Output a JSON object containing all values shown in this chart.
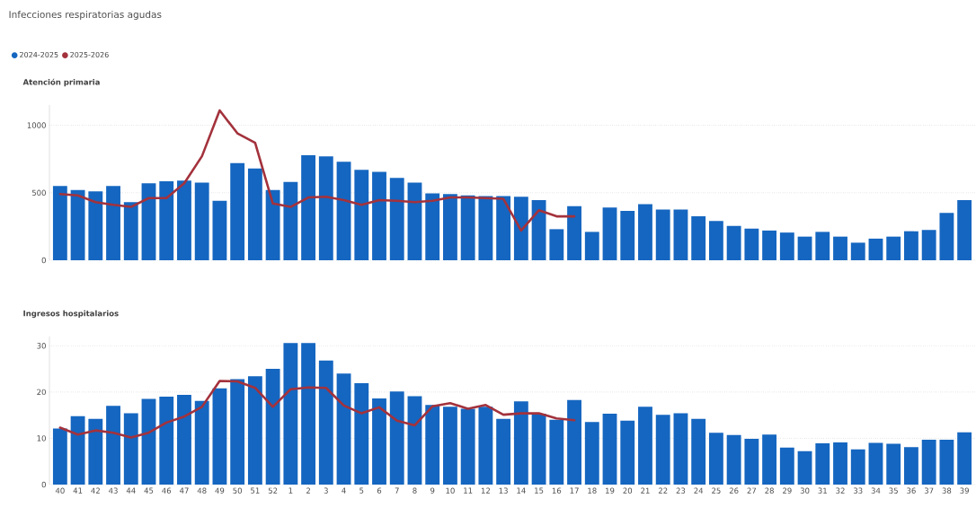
{
  "chart_data": [
    {
      "type": "bar",
      "title": "Infecciones respiratorias agudas",
      "subtitle": "Atención primaria",
      "categories": [
        "40",
        "41",
        "42",
        "43",
        "44",
        "45",
        "46",
        "47",
        "48",
        "49",
        "50",
        "51",
        "52",
        "1",
        "2",
        "3",
        "4",
        "5",
        "6",
        "7",
        "8",
        "9",
        "10",
        "11",
        "12",
        "13",
        "14",
        "15",
        "16",
        "17",
        "18",
        "19",
        "20",
        "21",
        "22",
        "23",
        "24",
        "25",
        "26",
        "27",
        "28",
        "29",
        "30",
        "31",
        "32",
        "33",
        "34",
        "35",
        "36",
        "37",
        "38",
        "39"
      ],
      "series": [
        {
          "name": "2024-2025",
          "color": "#1566c0",
          "values": [
            550,
            520,
            510,
            550,
            430,
            570,
            585,
            590,
            575,
            440,
            720,
            680,
            520,
            580,
            780,
            770,
            730,
            670,
            655,
            610,
            575,
            495,
            490,
            480,
            475,
            475,
            470,
            445,
            230,
            400,
            210,
            390,
            365,
            415,
            375,
            375,
            325,
            290,
            255,
            235,
            220,
            205,
            175,
            210,
            175,
            130,
            160,
            175,
            215,
            225,
            350,
            445
          ]
        },
        {
          "name": "2025-2026",
          "type": "line",
          "color": "#a3323c",
          "values": [
            490,
            480,
            430,
            410,
            395,
            460,
            460,
            570,
            770,
            1110,
            940,
            870,
            420,
            395,
            465,
            470,
            445,
            410,
            445,
            440,
            430,
            440,
            465,
            465,
            460,
            455,
            220,
            370,
            325,
            325,
            null,
            null,
            null,
            null,
            null,
            null,
            null,
            null,
            null,
            null,
            null,
            null,
            null,
            null,
            null,
            null,
            null,
            null,
            null,
            null,
            null,
            null
          ]
        }
      ],
      "ylim": [
        0,
        1150
      ],
      "yticks": [
        0,
        500,
        1000
      ],
      "grid": "y",
      "legend": "top left",
      "tick_labels": "y",
      "line_style": "solid",
      "marker": "none"
    },
    {
      "type": "bar",
      "title": "Ingresos hospitalarios",
      "categories": [
        "40",
        "41",
        "42",
        "43",
        "44",
        "45",
        "46",
        "47",
        "48",
        "49",
        "50",
        "51",
        "52",
        "1",
        "2",
        "3",
        "4",
        "5",
        "6",
        "7",
        "8",
        "9",
        "10",
        "11",
        "12",
        "13",
        "14",
        "15",
        "16",
        "17",
        "18",
        "19",
        "20",
        "21",
        "22",
        "23",
        "24",
        "25",
        "26",
        "27",
        "28",
        "29",
        "30",
        "31",
        "32",
        "33",
        "34",
        "35",
        "36",
        "37",
        "38",
        "39"
      ],
      "series": [
        {
          "color": "#1566c0",
          "values": [
            12.1,
            14.8,
            14.2,
            17.0,
            15.4,
            18.5,
            19.0,
            19.4,
            18.1,
            20.8,
            22.8,
            23.4,
            25.0,
            30.6,
            30.6,
            26.8,
            24.0,
            21.9,
            18.6,
            20.1,
            19.1,
            17.2,
            16.8,
            16.4,
            16.8,
            14.2,
            18.0,
            15.3,
            14.0,
            18.3,
            13.5,
            15.3,
            13.8,
            16.8,
            15.1,
            15.4,
            14.2,
            11.2,
            10.7,
            9.9,
            10.8,
            8.0,
            7.2,
            8.9,
            9.1,
            7.6,
            9.0,
            8.8,
            8.1,
            9.7,
            9.7,
            11.3
          ]
        },
        {
          "type": "line",
          "color": "#a3323c",
          "values": [
            12.3,
            10.8,
            11.7,
            11.2,
            10.2,
            11.2,
            13.4,
            14.7,
            16.8,
            22.4,
            22.3,
            20.9,
            16.8,
            20.6,
            21.0,
            20.9,
            17.1,
            15.4,
            16.7,
            13.8,
            12.8,
            16.9,
            17.6,
            16.4,
            17.2,
            15.1,
            15.4,
            15.4,
            14.3,
            13.9,
            null,
            null,
            null,
            null,
            null,
            null,
            null,
            null,
            null,
            null,
            null,
            null,
            null,
            null,
            null,
            null,
            null,
            null,
            null,
            null,
            null,
            null
          ]
        }
      ],
      "ylim": [
        0,
        32
      ],
      "yticks": [
        0,
        10,
        20,
        30
      ],
      "grid": "y",
      "line_style": "solid",
      "marker": "none"
    }
  ]
}
